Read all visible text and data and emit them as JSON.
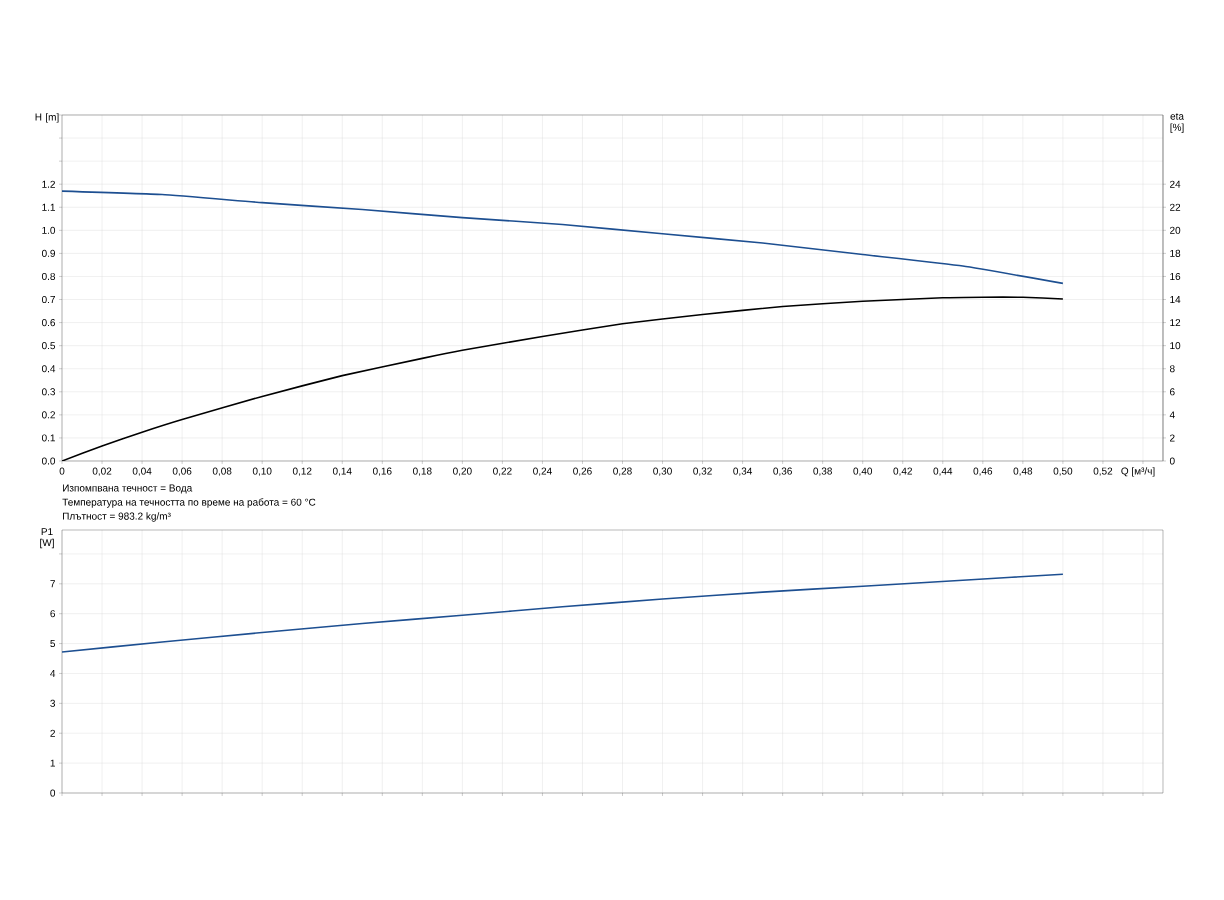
{
  "chart_data": [
    {
      "type": "line",
      "xlabel": "Q [м³/ч]",
      "ylabel": "H [m]",
      "y2label": "eta [%]",
      "grid": true,
      "xlim": [
        0,
        0.55
      ],
      "ylim": [
        0,
        1.5
      ],
      "y2lim": [
        0,
        30
      ],
      "xticks": [
        0,
        {
          "value": 0.02,
          "label": "0,02"
        },
        {
          "value": 0.04,
          "label": "0,04"
        },
        {
          "value": 0.06,
          "label": "0,06"
        },
        {
          "value": 0.08,
          "label": "0,08"
        },
        {
          "value": 0.1,
          "label": "0,10"
        },
        {
          "value": 0.12,
          "label": "0,12"
        },
        {
          "value": 0.14,
          "label": "0,14"
        },
        {
          "value": 0.16,
          "label": "0,16"
        },
        {
          "value": 0.18,
          "label": "0,18"
        },
        {
          "value": 0.2,
          "label": "0,20"
        },
        {
          "value": 0.22,
          "label": "0,22"
        },
        {
          "value": 0.24,
          "label": "0,24"
        },
        {
          "value": 0.26,
          "label": "0,26"
        },
        {
          "value": 0.28,
          "label": "0,28"
        },
        {
          "value": 0.3,
          "label": "0,30"
        },
        {
          "value": 0.32,
          "label": "0,32"
        },
        {
          "value": 0.34,
          "label": "0,34"
        },
        {
          "value": 0.36,
          "label": "0,36"
        },
        {
          "value": 0.38,
          "label": "0,38"
        },
        {
          "value": 0.4,
          "label": "0,40"
        },
        {
          "value": 0.42,
          "label": "0,42"
        },
        {
          "value": 0.44,
          "label": "0,44"
        },
        {
          "value": 0.46,
          "label": "0,46"
        },
        {
          "value": 0.48,
          "label": "0,48"
        },
        {
          "value": 0.5,
          "label": "0,50"
        },
        {
          "value": 0.52,
          "label": "0,52"
        },
        {
          "value": 0.54,
          "label": null
        }
      ],
      "yticks": [
        {
          "value": 0,
          "label": "0.0"
        },
        0.1,
        0.2,
        0.3,
        0.4,
        0.5,
        0.6,
        0.7,
        0.8,
        0.9,
        {
          "value": 1,
          "label": "1.0"
        },
        1.1,
        1.2,
        {
          "value": 1.3,
          "label": null
        },
        {
          "value": 1.4,
          "label": null
        },
        {
          "value": 1.5,
          "label": null
        }
      ],
      "y2ticks": [
        0,
        2,
        4,
        6,
        8,
        10,
        12,
        14,
        16,
        18,
        20,
        22,
        24
      ],
      "series": [
        {
          "color": "#1d4f91",
          "x": [
            0,
            0.05,
            0.1,
            0.15,
            0.2,
            0.25,
            0.3,
            0.35,
            0.4,
            0.45,
            0.5
          ],
          "values": [
            1.17,
            1.155,
            1.12,
            1.09,
            1.055,
            1.025,
            0.985,
            0.945,
            0.895,
            0.845,
            0.77
          ]
        },
        {
          "color": "#000000",
          "axis": "y2",
          "x": [
            0,
            0.02,
            0.04,
            0.06,
            0.1,
            0.14,
            0.18,
            0.2,
            0.24,
            0.28,
            0.32,
            0.36,
            0.4,
            0.44,
            0.46,
            0.48,
            0.5
          ],
          "values": [
            0,
            1.3,
            2.5,
            3.6,
            5.6,
            7.4,
            8.9,
            9.6,
            10.8,
            11.9,
            12.7,
            13.4,
            13.85,
            14.15,
            14.2,
            14.2,
            14.05
          ]
        }
      ],
      "annotations": [
        "Изпомпвана течност = Вода",
        "Температура на течността по време на работа = 60 °C",
        "Плътност = 983.2 kg/m³"
      ]
    },
    {
      "type": "line",
      "ylabel": "P1 [W]",
      "grid": true,
      "tick_labels": "y",
      "xlim": [
        0,
        0.55
      ],
      "ylim": [
        0,
        8.8
      ],
      "xticks": [
        0,
        0.02,
        0.04,
        0.06,
        0.08,
        0.1,
        0.12,
        0.14,
        0.16,
        0.18,
        0.2,
        0.22,
        0.24,
        0.26,
        0.28,
        0.3,
        0.32,
        0.34,
        0.36,
        0.38,
        0.4,
        0.42,
        0.44,
        0.46,
        0.48,
        0.5,
        0.52,
        0.54
      ],
      "yticks": [
        0,
        1,
        2,
        3,
        4,
        5,
        6,
        7,
        {
          "value": 8,
          "label": null
        }
      ],
      "series": [
        {
          "color": "#1d4f91",
          "x": [
            0,
            0.05,
            0.1,
            0.15,
            0.2,
            0.25,
            0.3,
            0.35,
            0.4,
            0.45,
            0.5
          ],
          "values": [
            4.72,
            5.05,
            5.37,
            5.67,
            5.95,
            6.23,
            6.49,
            6.72,
            6.92,
            7.12,
            7.32
          ]
        }
      ]
    }
  ]
}
